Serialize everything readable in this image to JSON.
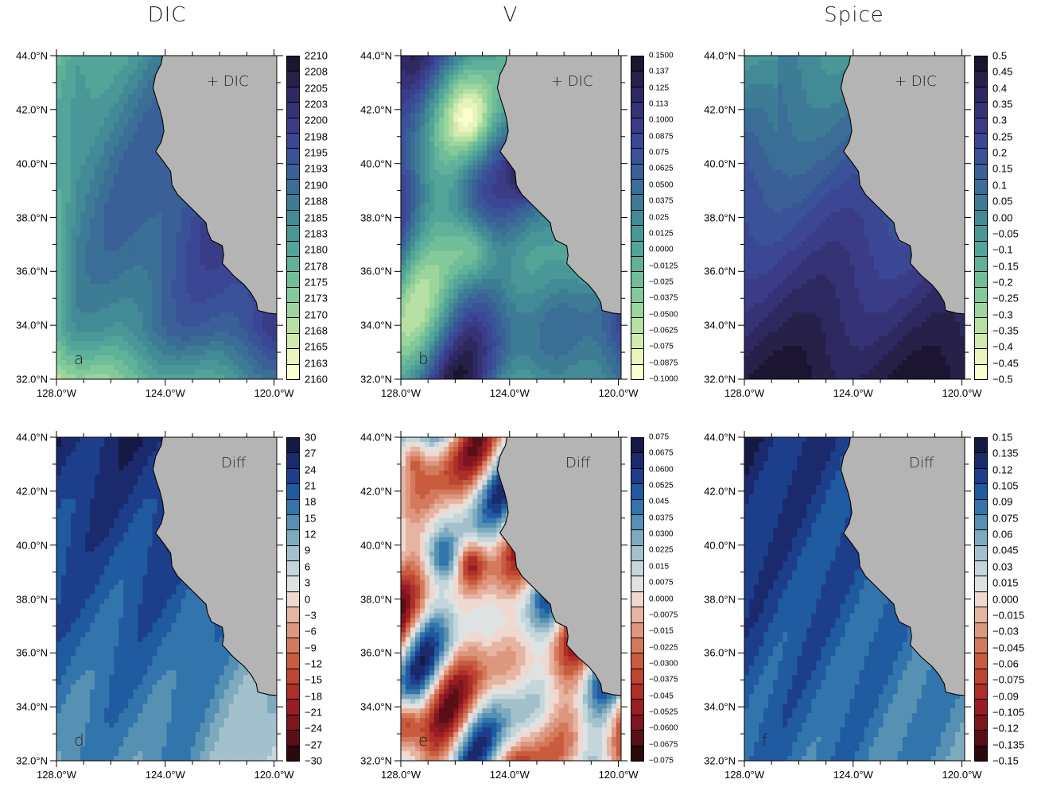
{
  "column_titles": [
    "DIC",
    "V",
    "Spice"
  ],
  "y_tick_labels": [
    "44.0°N",
    "42.0°N",
    "40.0°N",
    "38.0°N",
    "36.0°N",
    "34.0°N",
    "32.0°N"
  ],
  "x_tick_labels": [
    "128.0°W",
    "124.0°W",
    "120.0°W"
  ],
  "chart_data": [
    {
      "type": "heatmap",
      "panel": "a",
      "inset_label": "+ DIC",
      "colormap": "deep",
      "lat_range": [
        32,
        44
      ],
      "lon_range": [
        -128,
        -119.9
      ],
      "colorbar_labels": [
        "2210",
        "2208",
        "2205",
        "2203",
        "2200",
        "2198",
        "2195",
        "2193",
        "2190",
        "2188",
        "2185",
        "2183",
        "2180",
        "2178",
        "2175",
        "2173",
        "2170",
        "2168",
        "2165",
        "2163",
        "2160"
      ]
    },
    {
      "type": "heatmap",
      "panel": "b",
      "inset_label": "+ DIC",
      "colormap": "deep",
      "lat_range": [
        32,
        44
      ],
      "lon_range": [
        -128,
        -119.9
      ],
      "colorbar_labels": [
        "0.1500",
        "0.137",
        "0.125",
        "0.113",
        "0.1000",
        "0.0875",
        "0.075",
        "0.0625",
        "0.0500",
        "0.0375",
        "0.025",
        "0.0125",
        "0.0000",
        "−0.0125",
        "−0.025",
        "−0.0375",
        "−0.0500",
        "−0.0625",
        "−0.075",
        "−0.0875",
        "−0.1000"
      ]
    },
    {
      "type": "heatmap",
      "panel": "c",
      "inset_label": "+ DIC",
      "colormap": "deep",
      "lat_range": [
        32,
        44
      ],
      "lon_range": [
        -128,
        -119.9
      ],
      "colorbar_labels": [
        "0.5",
        "0.45",
        "0.4",
        "0.35",
        "0.3",
        "0.25",
        "0.2",
        "0.15",
        "0.1",
        "0.05",
        "0.00",
        "−0.05",
        "−0.1",
        "−0.15",
        "−0.2",
        "−0.25",
        "−0.3",
        "−0.35",
        "−0.4",
        "−0.45",
        "−0.5"
      ]
    },
    {
      "type": "heatmap",
      "panel": "d",
      "inset_label": "Diff",
      "colormap": "diverging",
      "lat_range": [
        32,
        44
      ],
      "lon_range": [
        -128,
        -119.9
      ],
      "colorbar_labels": [
        "30",
        "27",
        "24",
        "21",
        "18",
        "15",
        "12",
        "9",
        "6",
        "3",
        "0",
        "−3",
        "−6",
        "−9",
        "−12",
        "−15",
        "−18",
        "−21",
        "−24",
        "−27",
        "−30"
      ]
    },
    {
      "type": "heatmap",
      "panel": "e",
      "inset_label": "Diff",
      "colormap": "diverging",
      "lat_range": [
        32,
        44
      ],
      "lon_range": [
        -128,
        -119.9
      ],
      "colorbar_labels": [
        "0.075",
        "0.0675",
        "0.0600",
        "0.0525",
        "0.045",
        "0.0375",
        "0.0300",
        "0.0225",
        "0.015",
        "0.0075",
        "0.0000",
        "−0.0075",
        "−0.015",
        "−0.0225",
        "−0.0300",
        "−0.0375",
        "−0.045",
        "−0.0525",
        "−0.0600",
        "−0.0675",
        "−0.075"
      ]
    },
    {
      "type": "heatmap",
      "panel": "f",
      "inset_label": "Diff",
      "colormap": "diverging",
      "lat_range": [
        32,
        44
      ],
      "lon_range": [
        -128,
        -119.9
      ],
      "colorbar_labels": [
        "0.15",
        "0.135",
        "0.12",
        "0.105",
        "0.09",
        "0.075",
        "0.06",
        "0.045",
        "0.03",
        "0.015",
        "0.000",
        "−0.015",
        "−0.03",
        "−0.045",
        "−0.06",
        "−0.075",
        "−0.09",
        "−0.105",
        "−0.12",
        "−0.135",
        "−0.15"
      ]
    }
  ],
  "colors": {
    "land": "#b4b4b4",
    "deep": [
      "#fdfece",
      "#e9f4bd",
      "#d1ebae",
      "#b6e0a4",
      "#9bd49c",
      "#84c99a",
      "#70bd99",
      "#60b199",
      "#53a499",
      "#4a9798",
      "#438a97",
      "#3e7c96",
      "#3b6e96",
      "#3a6097",
      "#3a5298",
      "#3b4695",
      "#3a3c88",
      "#363276",
      "#2e2960",
      "#272049",
      "#1c1531"
    ],
    "diverging": [
      "#2a0a0b",
      "#5a0e16",
      "#7e1520",
      "#9a1d24",
      "#ae2e28",
      "#bd4531",
      "#c95c3f",
      "#d47a5c",
      "#dd977e",
      "#e6b4a2",
      "#efd8cf",
      "#dfe2e2",
      "#c5d6db",
      "#a3c1cc",
      "#7eaabf",
      "#5690b3",
      "#3275ac",
      "#205aa0",
      "#1d3f8b",
      "#1b2a6c",
      "#151a45"
    ]
  }
}
